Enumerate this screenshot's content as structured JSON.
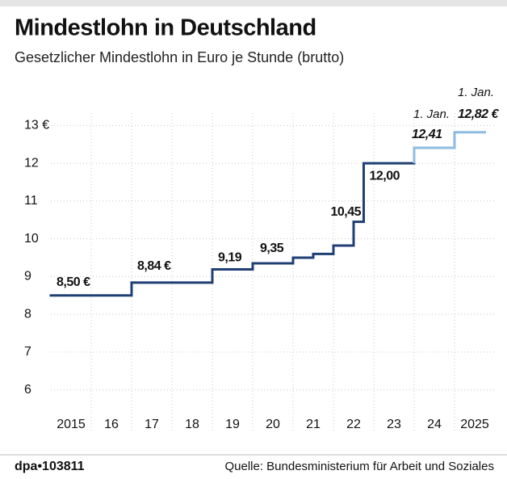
{
  "chart_data": {
    "type": "step",
    "title": "Mindestlohn in Deutschland",
    "subtitle": "Gesetzlicher Mindestlohn in Euro je Stunde (brutto)",
    "xlim": [
      2015,
      2026
    ],
    "xticks": [
      2015,
      {
        "value": 2016,
        "label": "16"
      },
      {
        "value": 2017,
        "label": "17"
      },
      {
        "value": 2018,
        "label": "18"
      },
      {
        "value": 2019,
        "label": "19"
      },
      {
        "value": 2020,
        "label": "20"
      },
      {
        "value": 2021,
        "label": "21"
      },
      {
        "value": 2022,
        "label": "22"
      },
      {
        "value": 2023,
        "label": "23"
      },
      {
        "value": 2024,
        "label": "24"
      },
      2025
    ],
    "ylim": [
      5.5,
      13.5
    ],
    "yticks": [
      6,
      7,
      8,
      9,
      10,
      11,
      12,
      {
        "value": 13,
        "label": "13 €"
      }
    ],
    "grid": true,
    "series": [
      {
        "color": "#1f3f74",
        "x": [
          2015,
          2017,
          2019,
          2020,
          2021,
          2021.5,
          2022,
          2022.5,
          2022.75,
          2024
        ],
        "values": [
          8.5,
          8.84,
          9.19,
          9.35,
          9.5,
          9.6,
          9.82,
          10.45,
          12.0,
          12.0
        ],
        "value_labels": [
          "8,50 €",
          "8,84 €",
          "9,19",
          "9,35",
          null,
          null,
          null,
          "10,45",
          "12,00",
          null
        ]
      },
      {
        "color": "#8fbbe0",
        "x": [
          2024,
          2025,
          2025.75
        ],
        "values": [
          12.41,
          12.82,
          12.82
        ],
        "value_labels": [
          "12,41",
          "12,82 €",
          null
        ],
        "annotations": [
          "1. Jan.",
          "1. Jan.",
          null
        ]
      }
    ],
    "credit": "dpa•103811",
    "source": "Quelle: Bundesministerium für Arbeit und Soziales"
  }
}
